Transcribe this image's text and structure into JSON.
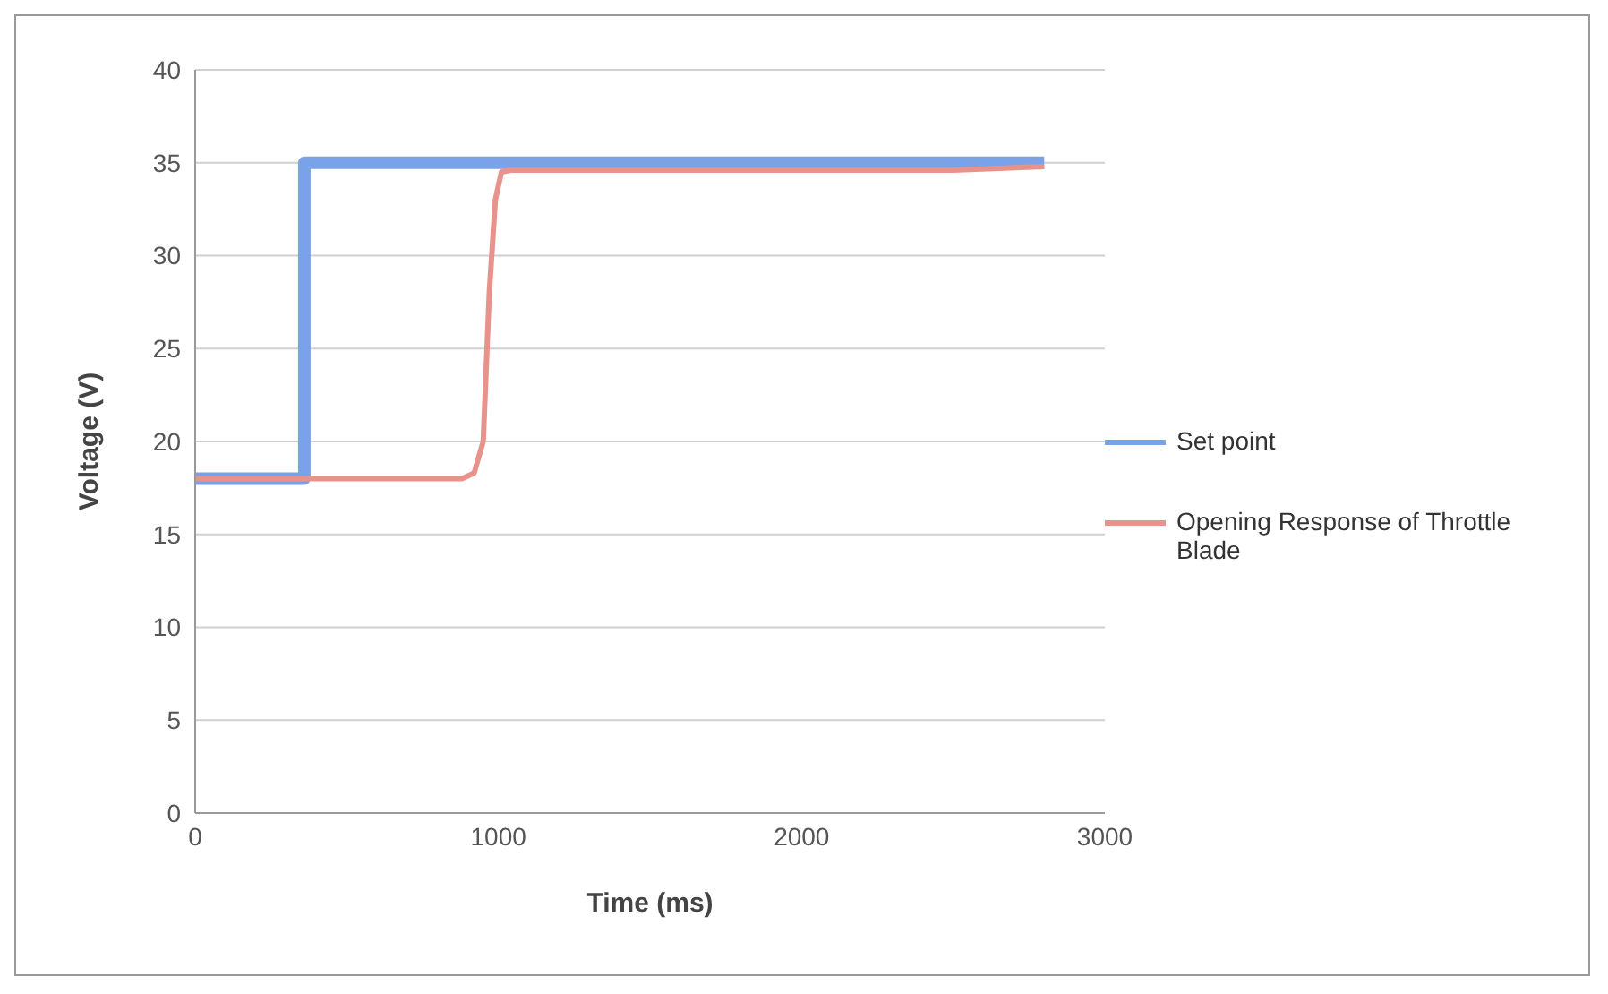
{
  "chart_data": {
    "type": "line",
    "xlabel": "Time (ms)",
    "ylabel": "Voltage (V)",
    "series": [
      {
        "name": "Set point",
        "color": "#7aa2e8",
        "x": [
          0,
          360,
          360,
          2800
        ],
        "values": [
          18,
          18,
          35,
          35
        ]
      },
      {
        "name": "Opening Response of Throttle Blade",
        "color": "#e8928c",
        "x": [
          0,
          880,
          920,
          950,
          970,
          990,
          1010,
          1040,
          1500,
          2000,
          2500,
          2800
        ],
        "values": [
          18,
          18,
          18.3,
          20,
          28,
          33,
          34.5,
          34.6,
          34.6,
          34.6,
          34.6,
          34.8
        ]
      }
    ],
    "xlim": [
      0,
      3000
    ],
    "xticks": [
      0,
      1000,
      2000,
      3000
    ],
    "ylim": [
      0,
      40
    ],
    "yticks": [
      0,
      5,
      10,
      15,
      20,
      25,
      30,
      35,
      40
    ],
    "grid": "y",
    "legend": "right",
    "marker": "none",
    "line_style": "solid"
  }
}
